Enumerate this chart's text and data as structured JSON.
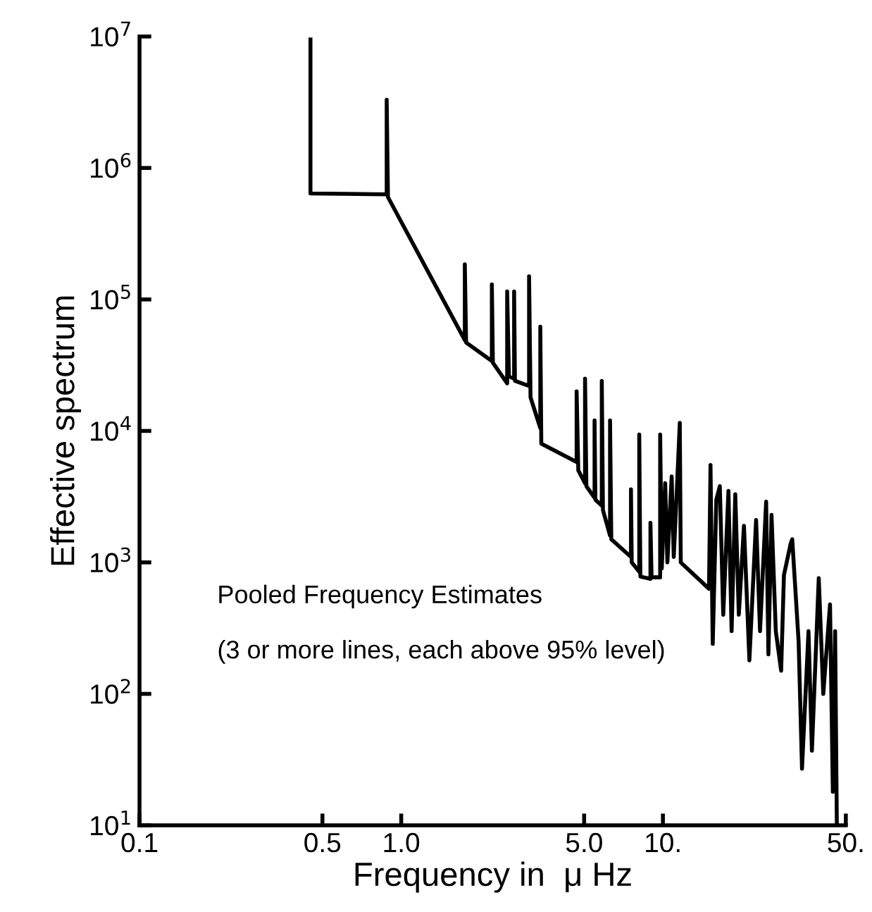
{
  "chart_data": {
    "type": "line",
    "xlabel": "Frequency in  μ Hz",
    "ylabel": "Effective spectrum",
    "annotations": [
      "Pooled Frequency Estimates",
      "(3 or more lines, each above 95% level)"
    ],
    "log": "xy",
    "grid": false,
    "legend": false,
    "marker": "none",
    "line_style": "solid",
    "xlim": [
      0.1,
      50
    ],
    "ylim": [
      10,
      10000000
    ],
    "xticks": [
      {
        "value": 0.1,
        "label": "0.1"
      },
      {
        "value": 0.5,
        "label": "0.5"
      },
      {
        "value": 1,
        "label": "1.0"
      },
      {
        "value": 5,
        "label": "5.0"
      },
      {
        "value": 10,
        "label": "10."
      },
      {
        "value": 50,
        "label": "50."
      }
    ],
    "yticks": [
      {
        "value": 10,
        "label": "10$^{1}$"
      },
      {
        "value": 100,
        "label": "10$^{2}$"
      },
      {
        "value": 1000,
        "label": "10$^{3}$"
      },
      {
        "value": 10000,
        "label": "10$^{4}$"
      },
      {
        "value": 100000,
        "label": "10$^{5}$"
      },
      {
        "value": 1000000,
        "label": "10$^{6}$"
      },
      {
        "value": 10000000,
        "label": "10$^{7}$"
      }
    ],
    "series": [
      {
        "color": "#000000",
        "x": [
          0.45,
          0.45,
          0.88,
          0.88,
          0.89,
          1.75,
          1.75,
          1.77,
          2.22,
          2.22,
          2.24,
          2.54,
          2.54,
          2.58,
          2.7,
          2.7,
          2.72,
          3.08,
          3.08,
          3.12,
          3.4,
          3.4,
          3.43,
          4.68,
          4.68,
          4.75,
          5.04,
          5.04,
          5.1,
          5.48,
          5.48,
          5.52,
          5.84,
          5.84,
          5.9,
          6.28,
          6.28,
          6.35,
          7.55,
          7.55,
          7.6,
          8.12,
          8.12,
          8.2,
          8.96,
          8.96,
          9.05,
          9.76,
          9.76,
          9.9,
          10.2,
          10.4,
          10.8,
          11.0,
          11.3,
          11.6,
          11.7,
          15.0,
          15.2,
          15.5,
          16.0,
          16.5,
          17.0,
          17.8,
          18.3,
          18.9,
          19.5,
          20.4,
          21.4,
          22.7,
          23.5,
          24.8,
          25.3,
          26.0,
          27,
          28.3,
          29.0,
          30.8,
          31.2,
          33,
          34.0,
          36,
          37.1,
          39.4,
          41,
          43.5,
          44.6,
          45.5,
          46.2
        ],
        "values": [
          9500000,
          640000,
          630000,
          3300000,
          600000,
          49000,
          185000,
          47000,
          34000,
          130000,
          33000,
          23000,
          115000,
          26000,
          25000,
          115000,
          24000,
          22000,
          150000,
          18000,
          10500,
          62000,
          8000,
          5800,
          20000,
          5000,
          4000,
          25000,
          3800,
          3100,
          12000,
          3000,
          2700,
          24000,
          2500,
          1600,
          12000,
          1500,
          1100,
          3600,
          1000,
          850,
          9400,
          780,
          750,
          2000,
          770,
          770,
          9400,
          900,
          4000,
          1000,
          4500,
          1100,
          3500,
          11500,
          1000,
          630,
          5500,
          240,
          3000,
          3800,
          400,
          3500,
          300,
          3300,
          400,
          1900,
          180,
          2100,
          300,
          2900,
          200,
          2300,
          300,
          150,
          800,
          1400,
          1500,
          250,
          27,
          300,
          37,
          760,
          100,
          480,
          18,
          300,
          10
        ]
      }
    ]
  }
}
